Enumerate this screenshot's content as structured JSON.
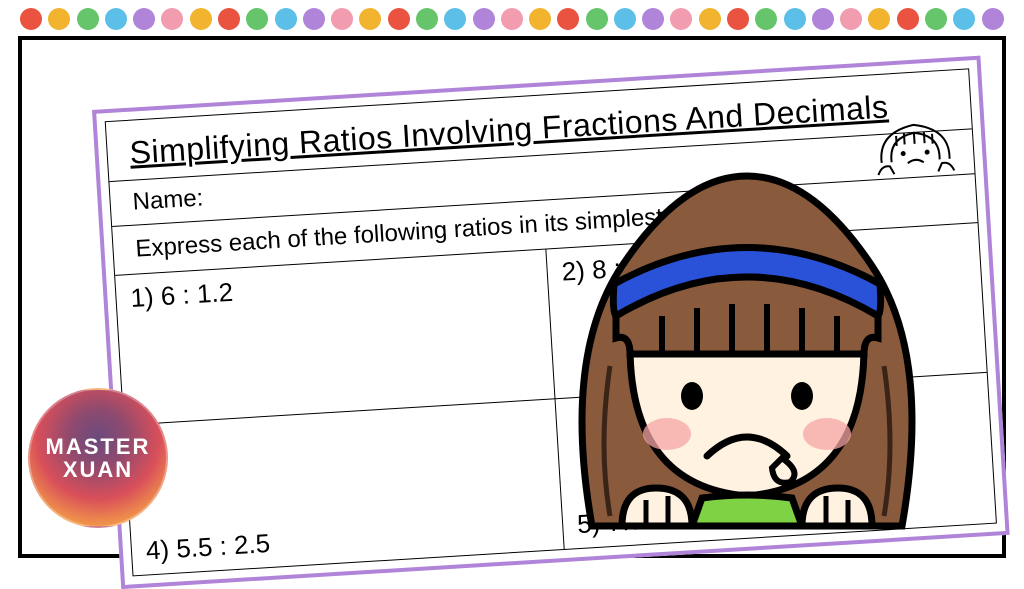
{
  "dots": {
    "colors": [
      "#e9533f",
      "#f2b42e",
      "#66c46b",
      "#5cbfe7",
      "#b084d8",
      "#f29cb0",
      "#f2b42e",
      "#e9533f",
      "#66c46b",
      "#5cbfe7",
      "#b084d8",
      "#f29cb0",
      "#f2b42e",
      "#e9533f",
      "#66c46b",
      "#5cbfe7",
      "#b084d8",
      "#f29cb0",
      "#f2b42e",
      "#e9533f",
      "#66c46b",
      "#5cbfe7",
      "#b084d8",
      "#f29cb0",
      "#f2b42e",
      "#e9533f",
      "#66c46b",
      "#5cbfe7",
      "#b084d8",
      "#f29cb0",
      "#f2b42e",
      "#e9533f",
      "#66c46b",
      "#5cbfe7",
      "#b084d8"
    ]
  },
  "worksheet": {
    "title": "Simplifying Ratios Involving Fractions And Decimals",
    "name_label": "Name:",
    "instruction": "Express each of the following ratios in its simplest form.",
    "cells": {
      "c1": "1) 6 : 1.2",
      "c2": "2) 8 : 2.4",
      "c3_bottom": "4) 5.5 : 2.5",
      "c4_bottom": "5) 7.7 : 4.4"
    },
    "border_color": "#b084d8"
  },
  "logo": {
    "line1": "MASTER",
    "line2": "XUAN",
    "gradient_inner": "#6b4a7d",
    "gradient_mid": "#d94f5a",
    "gradient_outer": "#ffe066"
  },
  "character": {
    "hair_color": "#8a5a3c",
    "hair_outline": "#3a2418",
    "headband_color": "#2a52d8",
    "skin_color": "#fff2e0",
    "cheek_color": "#f5a6a6",
    "shirt_color": "#7ed243",
    "outline": "#000000"
  },
  "frame": {
    "border_color": "#000000",
    "background": "#ffffff"
  }
}
